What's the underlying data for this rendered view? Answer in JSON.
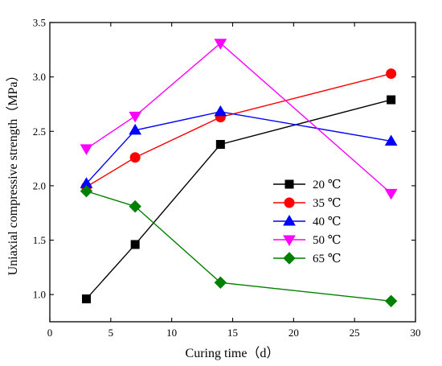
{
  "chart_data": {
    "type": "line",
    "title": "",
    "xlabel": "Curing time（d）",
    "ylabel": "Uniaxial compressive strength（MPa）",
    "xlim": [
      0,
      30
    ],
    "ylim": [
      0.75,
      3.5
    ],
    "x_ticks": [
      "0",
      "5",
      "10",
      "15",
      "20",
      "25",
      "30"
    ],
    "y_ticks": [
      "1.0",
      "1.5",
      "2.0",
      "2.5",
      "3.0",
      "3.5"
    ],
    "grid": false,
    "legend_position": "center-right",
    "x": [
      3,
      7,
      14,
      28
    ],
    "series": [
      {
        "name": "20 ℃",
        "color": "#000000",
        "marker": "square",
        "values": [
          0.96,
          1.46,
          2.38,
          2.79
        ]
      },
      {
        "name": "35 ℃",
        "color": "#ff0000",
        "marker": "circle",
        "values": [
          1.99,
          2.26,
          2.63,
          3.03
        ]
      },
      {
        "name": "40 ℃",
        "color": "#0000ff",
        "marker": "triangle-up",
        "values": [
          2.02,
          2.51,
          2.68,
          2.41
        ]
      },
      {
        "name": "50 ℃",
        "color": "#ff00ff",
        "marker": "triangle-down",
        "values": [
          2.34,
          2.64,
          3.31,
          1.93
        ]
      },
      {
        "name": "65 ℃",
        "color": "#008000",
        "marker": "diamond",
        "values": [
          1.95,
          1.81,
          1.11,
          0.94
        ]
      }
    ]
  }
}
